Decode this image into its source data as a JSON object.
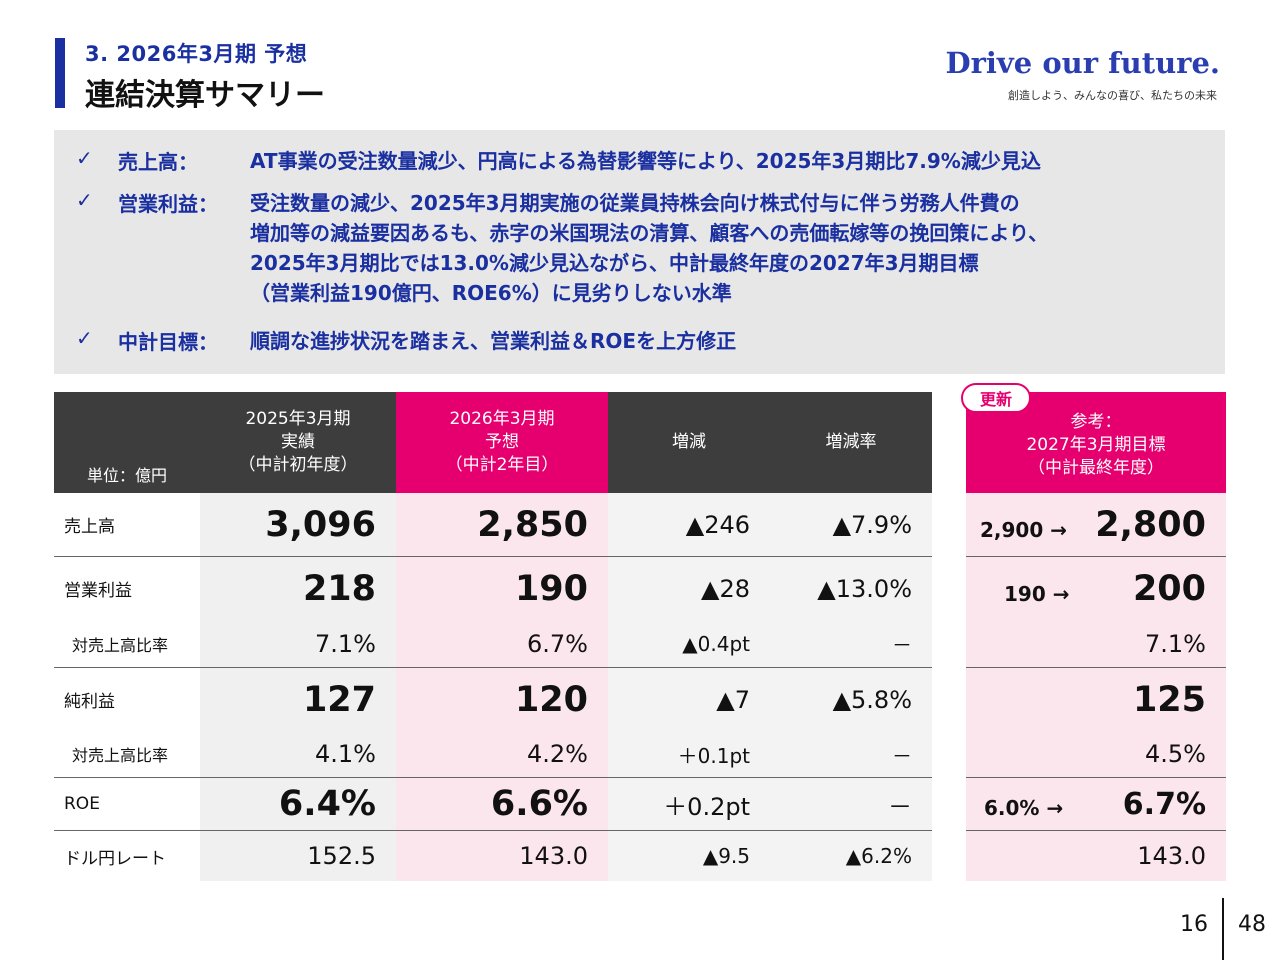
{
  "header": {
    "subtitle": "3.  2026年3月期 予想",
    "title": "連結決算サマリー",
    "brand": "Drive our future.",
    "brand_sub": "創造しよう、みんなの喜び、私たちの未来"
  },
  "summary": {
    "check": "✓",
    "items": [
      {
        "label": "売上高：",
        "lines": [
          "AT事業の受注数量減少、円高による為替影響等により、2025年3月期比7.9%減少見込"
        ]
      },
      {
        "label": "営業利益：",
        "lines": [
          "受注数量の減少、2025年3月期実施の従業員持株会向け株式付与に伴う労務人件費の",
          "増加等の減益要因あるも、赤字の米国現法の清算、顧客への売価転嫁等の挽回策により、",
          "2025年3月期比では13.0%減少見込ながら、中計最終年度の2027年3月期目標",
          "（営業利益190億円、ROE6%）に見劣りしない水準"
        ]
      },
      {
        "label": "中計目標：",
        "lines": [
          "順調な進捗状況を踏まえ、営業利益＆ROEを上方修正"
        ]
      }
    ]
  },
  "table": {
    "unit": "単位：億円",
    "col1": [
      "2025年3月期",
      "実績",
      "（中計初年度）"
    ],
    "col2": [
      "2026年3月期",
      "予想",
      "（中計2年目）"
    ],
    "col3": "増減",
    "col4": "増減率",
    "badge": "更新",
    "col5": [
      "参考：",
      "2027年3月期目標",
      "（中計最終年度）"
    ],
    "arrow": "→",
    "rows": [
      {
        "label": "売上高",
        "v1": "3,096",
        "v2": "2,850",
        "diff": "▲246",
        "rate": "▲7.9%",
        "ref_old": "2,900",
        "ref": "2,800"
      },
      {
        "label": "営業利益",
        "v1": "218",
        "v2": "190",
        "diff": "▲28",
        "rate": "▲13.0%",
        "ref_old": "190",
        "ref": "200"
      },
      {
        "label": "対売上高比率",
        "v1": "7.1%",
        "v2": "6.7%",
        "diff": "▲0.4pt",
        "rate": "－",
        "ref": "7.1%"
      },
      {
        "label": "純利益",
        "v1": "127",
        "v2": "120",
        "diff": "▲7",
        "rate": "▲5.8%",
        "ref": "125"
      },
      {
        "label": "対売上高比率",
        "v1": "4.1%",
        "v2": "4.2%",
        "diff": "＋0.1pt",
        "rate": "－",
        "ref": "4.5%"
      },
      {
        "label": "ROE",
        "v1": "6.4%",
        "v2": "6.6%",
        "diff": "＋0.2pt",
        "rate": "－",
        "ref_old": "6.0%",
        "ref": "6.7%"
      },
      {
        "label": "ドル円レート",
        "v1": "152.5",
        "v2": "143.0",
        "diff": "▲9.5",
        "rate": "▲6.2%",
        "ref": "143.0"
      }
    ]
  },
  "page": {
    "current": "16",
    "total": "48"
  }
}
